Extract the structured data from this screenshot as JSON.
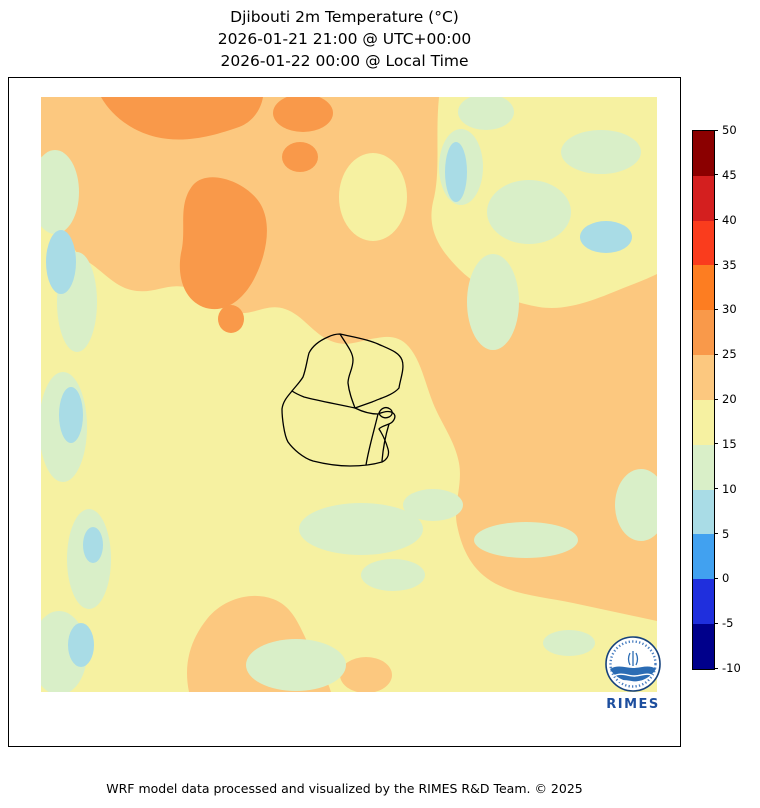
{
  "title": {
    "line1": "Djibouti 2m Temperature (°C)",
    "line2": "2026-01-21 21:00 @ UTC+00:00",
    "line3": "2026-01-22 00:00 @ Local Time"
  },
  "footer": {
    "text": "WRF model data processed and visualized by the RIMES R&D Team. © 2025"
  },
  "logo": {
    "label": "RIMES"
  },
  "chart_data": {
    "type": "heatmap",
    "title": "Djibouti 2m Temperature (°C)",
    "variable": "2m Temperature",
    "unit": "°C",
    "time_utc": "2026-01-21 21:00 @ UTC+00:00",
    "time_local": "2026-01-22 00:00 @ Local Time",
    "region": "Djibouti",
    "legend_position": "right",
    "grid": false,
    "colorbar": {
      "min": -10,
      "max": 50,
      "ticks": [
        50,
        45,
        40,
        35,
        30,
        25,
        20,
        15,
        10,
        5,
        0,
        -5,
        -10
      ],
      "segments_top_to_bottom": [
        {
          "range_c": "45 to 50",
          "color": "#8b0000"
        },
        {
          "range_c": "40 to 45",
          "color": "#d41f1f"
        },
        {
          "range_c": "35 to 40",
          "color": "#fa3c1d"
        },
        {
          "range_c": "30 to 35",
          "color": "#fd7d21"
        },
        {
          "range_c": "25 to 30",
          "color": "#f9994a"
        },
        {
          "range_c": "20 to 25",
          "color": "#fcc87f"
        },
        {
          "range_c": "15 to 20",
          "color": "#f6f1a1"
        },
        {
          "range_c": "10 to 15",
          "color": "#d9efc8"
        },
        {
          "range_c": "5 to 10",
          "color": "#a9dce6"
        },
        {
          "range_c": "0 to 5",
          "color": "#41a1f0"
        },
        {
          "range_c": "-5 to 0",
          "color": "#1f2fdd"
        },
        {
          "range_c": "-10 to -5",
          "color": "#00008b"
        }
      ]
    },
    "map_palette": {
      "15-20": "#f6f1a1",
      "20-25": "#fcc87f",
      "25-30": "#f9994a",
      "10-15": "#d9efc8",
      "5-10": "#a9dce6"
    },
    "observed_regions": [
      {
        "area": "broad central belt and eastern plains",
        "temp_c": "20-25"
      },
      {
        "area": "north-central highland patches",
        "temp_c": "25-30"
      },
      {
        "area": "western column, top-right pocket and southern band",
        "temp_c": "15-20"
      },
      {
        "area": "scattered valleys along west edge, northeast and south",
        "temp_c": "10-15"
      },
      {
        "area": "small cool cores on west edge and northeast",
        "temp_c": "5-10"
      }
    ],
    "boundary_overlay": "Djibouti region boundaries"
  }
}
